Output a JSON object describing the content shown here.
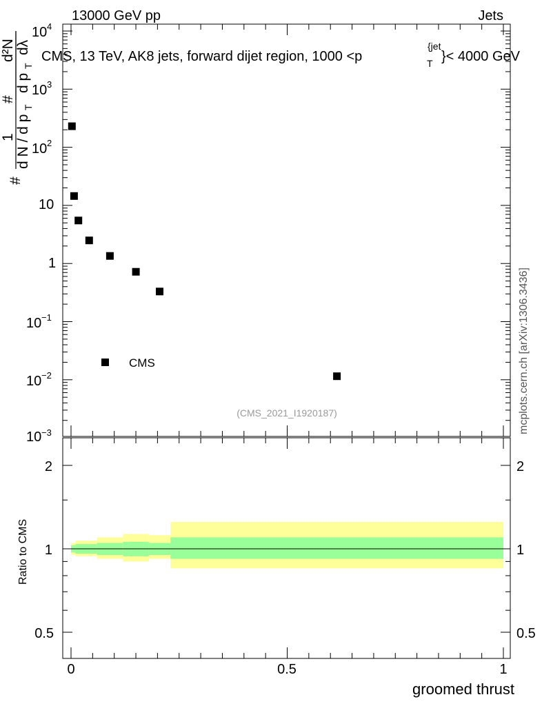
{
  "header": {
    "left": "13000 GeV pp",
    "right": "Jets"
  },
  "side_label": "mcplots.cern.ch [arXiv:1306.3436]",
  "main_plot": {
    "title_main": "CMS, 13 TeV, AK8 jets, forward dijet region, 1000 <p",
    "title_sup": "{jet",
    "title_sub": "T",
    "title_tail": "}< 4000 GeV",
    "ylabel_parts": {
      "frac_num": "1",
      "hash1": "#",
      "dN": "d N / d p",
      "T1": "T",
      "hash2": "#",
      "dpT": "d p",
      "T2": "T",
      "dlambda": "dλ",
      "d2N": "d²N",
      "hash3": "#"
    },
    "legend_label": "CMS",
    "watermark": "(CMS_2021_I1920187)",
    "y_tick_labels": {
      "t4": "10",
      "t4e": "4",
      "t3": "10",
      "t3e": "3",
      "t2": "10",
      "t2e": "2",
      "t1": "10",
      "t0": "1",
      "tm1": "10",
      "tm1e": "−1",
      "tm2": "10",
      "tm2e": "−2",
      "tm3": "10",
      "tm3e": "−3"
    }
  },
  "ratio_plot": {
    "ylabel": "Ratio to CMS",
    "y_tick_labels": [
      "2",
      "1",
      "0.5"
    ],
    "y_tick_labels_right": [
      "2",
      "1",
      "0.5"
    ],
    "x_tick_labels": [
      "0",
      "0.5",
      "1"
    ],
    "xlabel": "groomed thrust"
  },
  "colors": {
    "band_inner": "#99ff99",
    "band_outer": "#ffff99",
    "marker": "#000000",
    "watermark": "#999999"
  },
  "chart_data": {
    "type": "scatter",
    "x_scale": "linear",
    "y_scale": "log",
    "xlim": [
      0,
      1
    ],
    "ylim": [
      0.001,
      10000
    ],
    "series": [
      {
        "name": "CMS",
        "x": [
          0.002,
          0.007,
          0.017,
          0.042,
          0.09,
          0.15,
          0.205,
          0.615
        ],
        "y": [
          230,
          14.5,
          5.5,
          2.5,
          1.35,
          0.72,
          0.33,
          0.0115
        ]
      }
    ],
    "ratio": {
      "ylim": [
        0.4,
        2.3
      ],
      "reference": 1.0,
      "bins": [
        {
          "x0": 0.0,
          "x1": 0.01,
          "inner": [
            0.97,
            1.03
          ],
          "outer": [
            0.95,
            1.05
          ]
        },
        {
          "x0": 0.01,
          "x1": 0.06,
          "inner": [
            0.96,
            1.04
          ],
          "outer": [
            0.94,
            1.07
          ]
        },
        {
          "x0": 0.06,
          "x1": 0.12,
          "inner": [
            0.95,
            1.05
          ],
          "outer": [
            0.92,
            1.1
          ]
        },
        {
          "x0": 0.12,
          "x1": 0.18,
          "inner": [
            0.94,
            1.06
          ],
          "outer": [
            0.9,
            1.13
          ]
        },
        {
          "x0": 0.18,
          "x1": 0.23,
          "inner": [
            0.95,
            1.05
          ],
          "outer": [
            0.92,
            1.12
          ]
        },
        {
          "x0": 0.23,
          "x1": 1.0,
          "inner": [
            0.92,
            1.1
          ],
          "outer": [
            0.85,
            1.25
          ]
        }
      ]
    },
    "xlabel": "groomed thrust",
    "ylabel_ratio": "Ratio to CMS",
    "legend": "top-left-lower"
  }
}
